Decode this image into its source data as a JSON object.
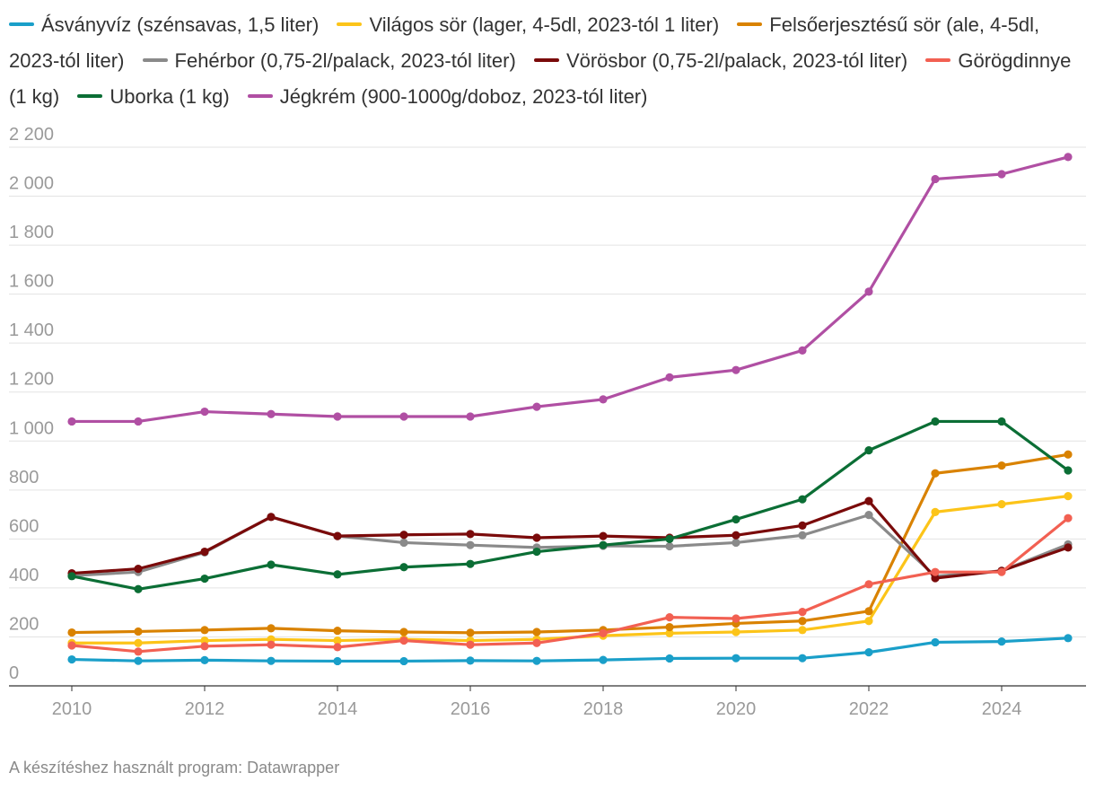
{
  "chart_data": {
    "type": "line",
    "title": "",
    "xlabel": "",
    "ylabel": "",
    "x": [
      2010,
      2011,
      2012,
      2013,
      2014,
      2015,
      2016,
      2017,
      2018,
      2019,
      2020,
      2021,
      2022,
      2023,
      2024,
      2025
    ],
    "xticks": [
      2010,
      2012,
      2014,
      2016,
      2018,
      2020,
      2022,
      2024
    ],
    "xtick_labels": [
      "2010",
      "2012",
      "2014",
      "2016",
      "2018",
      "2020",
      "2022",
      "2024"
    ],
    "ylim": [
      0,
      2200
    ],
    "yticks": [
      0,
      200,
      400,
      600,
      800,
      1000,
      1200,
      1400,
      1600,
      1800,
      2000,
      2200
    ],
    "ytick_labels": [
      "0",
      "200",
      "400",
      "600",
      "800",
      "1 000",
      "1 200",
      "1 400",
      "1 600",
      "1 800",
      "2 000",
      "2 200"
    ],
    "grid": true,
    "legend_position": "top",
    "series": [
      {
        "name": "Ásványvíz (szénsavas, 1,5 liter)",
        "color": "#1a9fc9",
        "values": [
          108,
          102,
          105,
          102,
          101,
          101,
          103,
          102,
          106,
          112,
          113,
          113,
          137,
          178,
          181,
          195
        ]
      },
      {
        "name": "Világos sör (lager, 4-5dl, 2023-tól 1 liter)",
        "color": "#fcc419",
        "values": [
          175,
          175,
          185,
          190,
          185,
          190,
          185,
          190,
          205,
          215,
          220,
          228,
          265,
          710,
          742,
          775
        ]
      },
      {
        "name": "Felsőerjesztésű sör (ale, 4-5dl, 2023-tól liter)",
        "color": "#d98200",
        "values": [
          218,
          222,
          228,
          235,
          225,
          220,
          217,
          220,
          228,
          240,
          255,
          265,
          305,
          868,
          900,
          945
        ]
      },
      {
        "name": "Fehérbor (0,75-2l/palack, 2023-tól liter)",
        "color": "#8a8a8a",
        "values": [
          450,
          465,
          545,
          690,
          612,
          585,
          575,
          565,
          572,
          570,
          585,
          615,
          698,
          448,
          470,
          578
        ]
      },
      {
        "name": "Vörösbor (0,75-2l/palack, 2023-tól liter)",
        "color": "#7a0a0a",
        "values": [
          460,
          478,
          548,
          690,
          612,
          617,
          620,
          605,
          612,
          605,
          615,
          655,
          755,
          440,
          470,
          565
        ]
      },
      {
        "name": "Görögdinnye (1 kg)",
        "color": "#f26052",
        "values": [
          165,
          140,
          162,
          168,
          158,
          185,
          168,
          175,
          215,
          280,
          275,
          302,
          415,
          465,
          465,
          685
        ]
      },
      {
        "name": "Uborka (1 kg)",
        "color": "#0b6e35",
        "values": [
          448,
          395,
          438,
          495,
          455,
          485,
          498,
          548,
          575,
          600,
          680,
          762,
          962,
          1080,
          1080,
          880
        ]
      },
      {
        "name": "Jégkrém (900-1000g/doboz, 2023-tól liter)",
        "color": "#b04fa3",
        "values": [
          1080,
          1080,
          1120,
          1110,
          1100,
          1100,
          1100,
          1140,
          1170,
          1260,
          1290,
          1370,
          1610,
          2070,
          2090,
          2160
        ]
      }
    ]
  },
  "footer": {
    "credit": "A készítéshez használt program: Datawrapper"
  }
}
